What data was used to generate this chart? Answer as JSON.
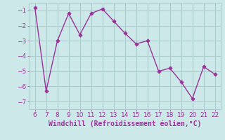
{
  "x": [
    6,
    7,
    8,
    9,
    10,
    11,
    12,
    13,
    14,
    15,
    16,
    17,
    18,
    19,
    20,
    21,
    22
  ],
  "y": [
    -0.8,
    -6.3,
    -3.0,
    -1.2,
    -2.6,
    -1.2,
    -0.9,
    -1.7,
    -2.5,
    -3.2,
    -3.0,
    -5.0,
    -4.8,
    -5.7,
    -6.8,
    -4.7,
    -5.2
  ],
  "line_color": "#993399",
  "marker": "D",
  "marker_size": 2.5,
  "linewidth": 1.0,
  "xlabel": "Windchill (Refroidissement éolien,°C)",
  "xlabel_fontsize": 7,
  "background_color": "#cce8e8",
  "grid_color": "#aacccc",
  "ylim": [
    -7.5,
    -0.5
  ],
  "xlim": [
    5.5,
    22.5
  ],
  "yticks": [
    -7,
    -6,
    -5,
    -4,
    -3,
    -2,
    -1
  ],
  "xticks": [
    6,
    7,
    8,
    9,
    10,
    11,
    12,
    13,
    14,
    15,
    16,
    17,
    18,
    19,
    20,
    21,
    22
  ],
  "tick_fontsize": 6.5,
  "tick_label_color": "#993399"
}
